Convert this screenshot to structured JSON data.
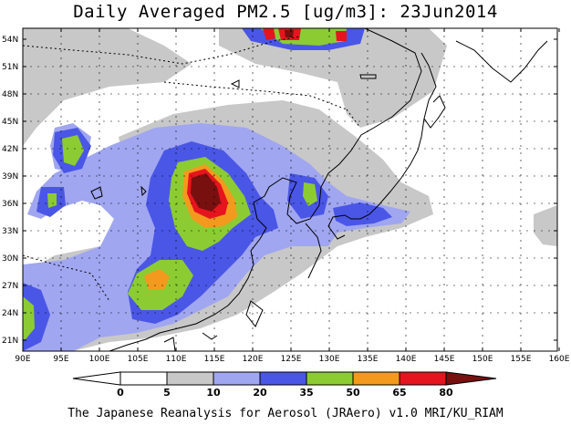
{
  "title": "Daily Averaged PM2.5 [ug/m3]: 23Jun2014",
  "footer": "The Japanese Reanalysis for Aerosol (JRAero) v1.0 MRI/KU_RIAM",
  "lon_ticks": [
    "90E",
    "95E",
    "100E",
    "105E",
    "110E",
    "115E",
    "120E",
    "125E",
    "130E",
    "135E",
    "140E",
    "145E",
    "150E",
    "155E",
    "160E"
  ],
  "lat_ticks": [
    "21N",
    "24N",
    "27N",
    "30N",
    "33N",
    "36N",
    "39N",
    "42N",
    "45N",
    "48N",
    "51N",
    "54N"
  ],
  "colorbar": {
    "labels": [
      "0",
      "5",
      "10",
      "20",
      "35",
      "50",
      "65",
      "80"
    ],
    "colors": [
      "#ffffff",
      "#c8c8c8",
      "#a0a6f0",
      "#4a56e6",
      "#8ccc32",
      "#f39a1e",
      "#e6141e",
      "#781010"
    ]
  }
}
